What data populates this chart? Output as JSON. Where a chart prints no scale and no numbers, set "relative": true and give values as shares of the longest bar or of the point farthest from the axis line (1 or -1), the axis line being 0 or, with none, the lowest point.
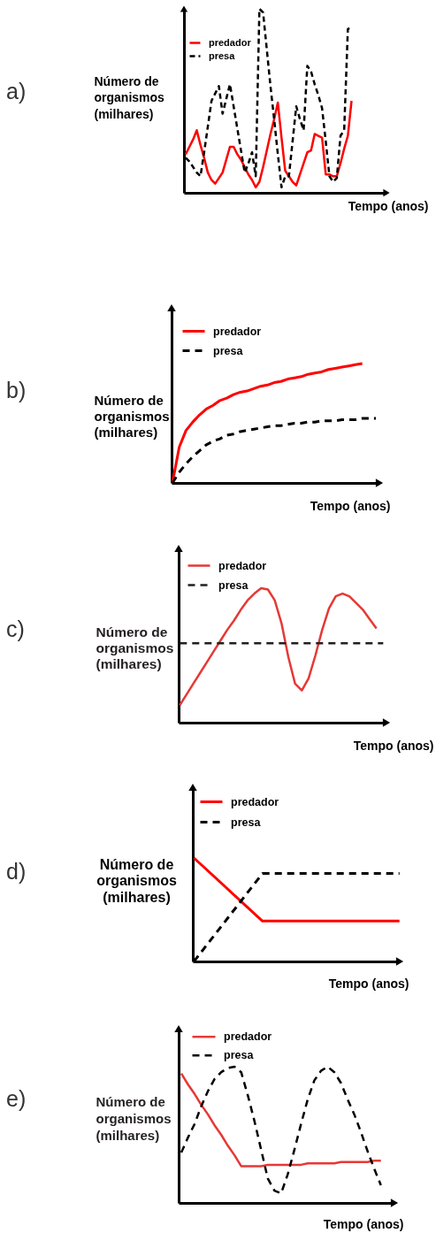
{
  "chart_data": [
    {
      "type": "line",
      "annotations": [
        "a)"
      ],
      "ylabel": "Número de organismos (milhares)",
      "xlabel": "Tempo (anos)",
      "relative": true,
      "legend": "top left",
      "categories": [
        null,
        null,
        null,
        null,
        null,
        null,
        null,
        null,
        null,
        null,
        null,
        null,
        null,
        null,
        null,
        null,
        null,
        null,
        null,
        null,
        null,
        null,
        null,
        null,
        null,
        null,
        null,
        null,
        null,
        null,
        null,
        null,
        null,
        null,
        null,
        null,
        null,
        null,
        null,
        null,
        null,
        null,
        null,
        null,
        null,
        null
      ],
      "series": [
        {
          "name": "predador",
          "color": "#ff0000",
          "line_style": "solid",
          "values": [
            0.21,
            0.25,
            0.29,
            0.34,
            0.26,
            0.19,
            0.11,
            0.07,
            0.05,
            0.08,
            0.11,
            0.18,
            0.25,
            0.25,
            0.21,
            0.18,
            0.14,
            0.1,
            0.07,
            0.03,
            0.06,
            0.14,
            0.23,
            0.32,
            0.4,
            0.49,
            0.3,
            0.12,
            0.09,
            0.06,
            0.04,
            0.1,
            0.16,
            0.22,
            0.23,
            0.32,
            0.31,
            0.3,
            0.1,
            0.1,
            0.09,
            0.09,
            0.16,
            0.24,
            0.31,
            0.5
          ]
        },
        {
          "name": "presa",
          "color": "#000000",
          "line_style": "dashed",
          "values": [
            0.19,
            0.17,
            0.14,
            0.11,
            0.09,
            0.22,
            0.36,
            0.5,
            0.54,
            0.58,
            0.43,
            0.51,
            0.59,
            0.47,
            0.35,
            0.23,
            0.11,
            0.16,
            0.22,
            0.09,
            1,
            0.98,
            0.78,
            0.58,
            0.4,
            0.21,
            0.03,
            0.09,
            0.09,
            0.28,
            0.47,
            0.4,
            0.34,
            0.69,
            0.66,
            0.59,
            0.53,
            0.46,
            0.28,
            0.09,
            0.06,
            0.08,
            0.31,
            0.34,
            0.89,
            0.9
          ]
        }
      ]
    },
    {
      "type": "line",
      "annotations": [
        "b)"
      ],
      "ylabel": "Número de organismos (milhares)",
      "xlabel": "Tempo (anos)",
      "relative": true,
      "legend": "top left",
      "categories": [
        null,
        null,
        null,
        null,
        null,
        null,
        null,
        null,
        null,
        null,
        null,
        null,
        null,
        null,
        null,
        null,
        null,
        null,
        null,
        null,
        null,
        null,
        null,
        null,
        null,
        null,
        null,
        null,
        null,
        null,
        null
      ],
      "series": [
        {
          "name": "predador",
          "color": "#ff0000",
          "line_style": "solid",
          "values": [
            0,
            0.3,
            0.44,
            0.51,
            0.57,
            0.62,
            0.65,
            0.69,
            0.71,
            0.74,
            0.76,
            0.77,
            0.79,
            0.81,
            0.82,
            0.84,
            0.85,
            0.87,
            0.88,
            0.89,
            0.91,
            0.92,
            0.93,
            0.95,
            0.96,
            0.97,
            0.98,
            0.99,
            1,
            null,
            null
          ]
        },
        {
          "name": "presa",
          "color": "#000000",
          "line_style": "dashed",
          "values": [
            0,
            0.09,
            0.16,
            0.22,
            0.27,
            0.32,
            0.35,
            0.37,
            0.4,
            0.41,
            0.43,
            0.44,
            0.45,
            0.46,
            0.47,
            0.48,
            0.48,
            0.49,
            0.5,
            0.5,
            0.51,
            0.51,
            0.52,
            0.52,
            0.52,
            0.53,
            0.53,
            0.53,
            0.54,
            0.54,
            0.54
          ]
        }
      ]
    },
    {
      "type": "line",
      "annotations": [
        "c)"
      ],
      "ylabel": "Número de organismos (milhares)",
      "xlabel": "Tempo (anos)",
      "relative": true,
      "legend": "top left",
      "categories": [
        null,
        null,
        null,
        null,
        null,
        null,
        null,
        null,
        null,
        null,
        null,
        null,
        null,
        null,
        null,
        null,
        null,
        null,
        null,
        null,
        null,
        null,
        null,
        null,
        null,
        null,
        null,
        null,
        null,
        null,
        null
      ],
      "series": [
        {
          "name": "predador",
          "color": "#e53935",
          "line_style": "solid",
          "values": [
            0.13,
            0.21,
            0.29,
            0.37,
            0.45,
            0.53,
            0.61,
            0.69,
            0.76,
            0.84,
            0.91,
            0.96,
            1,
            0.99,
            0.91,
            0.74,
            0.49,
            0.29,
            0.24,
            0.33,
            0.5,
            0.69,
            0.85,
            0.94,
            0.96,
            0.94,
            0.89,
            0.84,
            0.77,
            0.7,
            null
          ]
        },
        {
          "name": "presa",
          "color": "#231f20",
          "line_style": "dashed",
          "values": [
            0.59,
            0.59,
            0.59,
            0.59,
            0.59,
            0.59,
            0.59,
            0.59,
            0.59,
            0.59,
            0.59,
            0.59,
            0.59,
            0.59,
            0.59,
            0.59,
            0.59,
            0.59,
            0.59,
            0.59,
            0.59,
            0.59,
            0.59,
            0.59,
            0.59,
            0.59,
            0.59,
            0.59,
            0.59,
            0.59,
            0.59
          ]
        }
      ]
    },
    {
      "type": "line",
      "annotations": [
        "d)"
      ],
      "ylabel": "Número de organismos (milhares)",
      "xlabel": "Tempo (anos)",
      "relative": true,
      "legend": "top left",
      "categories": [
        null,
        null,
        null,
        null
      ],
      "series": [
        {
          "name": "predador",
          "color": "#ff0000",
          "line_style": "solid",
          "values": [
            1,
            0.39,
            0.39,
            0.39
          ]
        },
        {
          "name": "presa",
          "color": "#000000",
          "line_style": "dashed",
          "values": [
            0,
            0.85,
            0.85,
            0.85
          ]
        }
      ]
    },
    {
      "type": "line",
      "annotations": [
        "e)"
      ],
      "ylabel": "Número de organismos (milhares)",
      "xlabel": "Tempo (anos)",
      "relative": true,
      "legend": "top left",
      "categories": [
        null,
        null,
        null,
        null,
        null,
        null,
        null,
        null,
        null,
        null,
        null,
        null,
        null,
        null,
        null,
        null,
        null,
        null,
        null,
        null,
        null,
        null,
        null,
        null,
        null,
        null,
        null,
        null,
        null,
        null,
        null
      ],
      "series": [
        {
          "name": "predador",
          "color": "#e53935",
          "line_style": "solid",
          "values": [
            0.95,
            0.87,
            0.8,
            0.72,
            0.65,
            0.57,
            0.5,
            0.42,
            0.35,
            0.27,
            0.27,
            0.27,
            0.27,
            0.28,
            0.28,
            0.28,
            0.28,
            0.28,
            0.28,
            0.29,
            0.29,
            0.29,
            0.29,
            0.29,
            0.3,
            0.3,
            0.3,
            0.3,
            0.3,
            0.31,
            0.31
          ]
        },
        {
          "name": "presa",
          "color": "#000000",
          "line_style": "dashed",
          "values": [
            0.37,
            0.48,
            0.58,
            0.71,
            0.82,
            0.91,
            0.96,
            0.99,
            1,
            0.96,
            0.79,
            0.6,
            0.39,
            0.18,
            0.09,
            0.07,
            0.21,
            0.39,
            0.58,
            0.76,
            0.9,
            0.97,
            1,
            0.96,
            0.88,
            0.76,
            0.65,
            0.52,
            0.38,
            0.25,
            0.13
          ]
        }
      ]
    }
  ]
}
